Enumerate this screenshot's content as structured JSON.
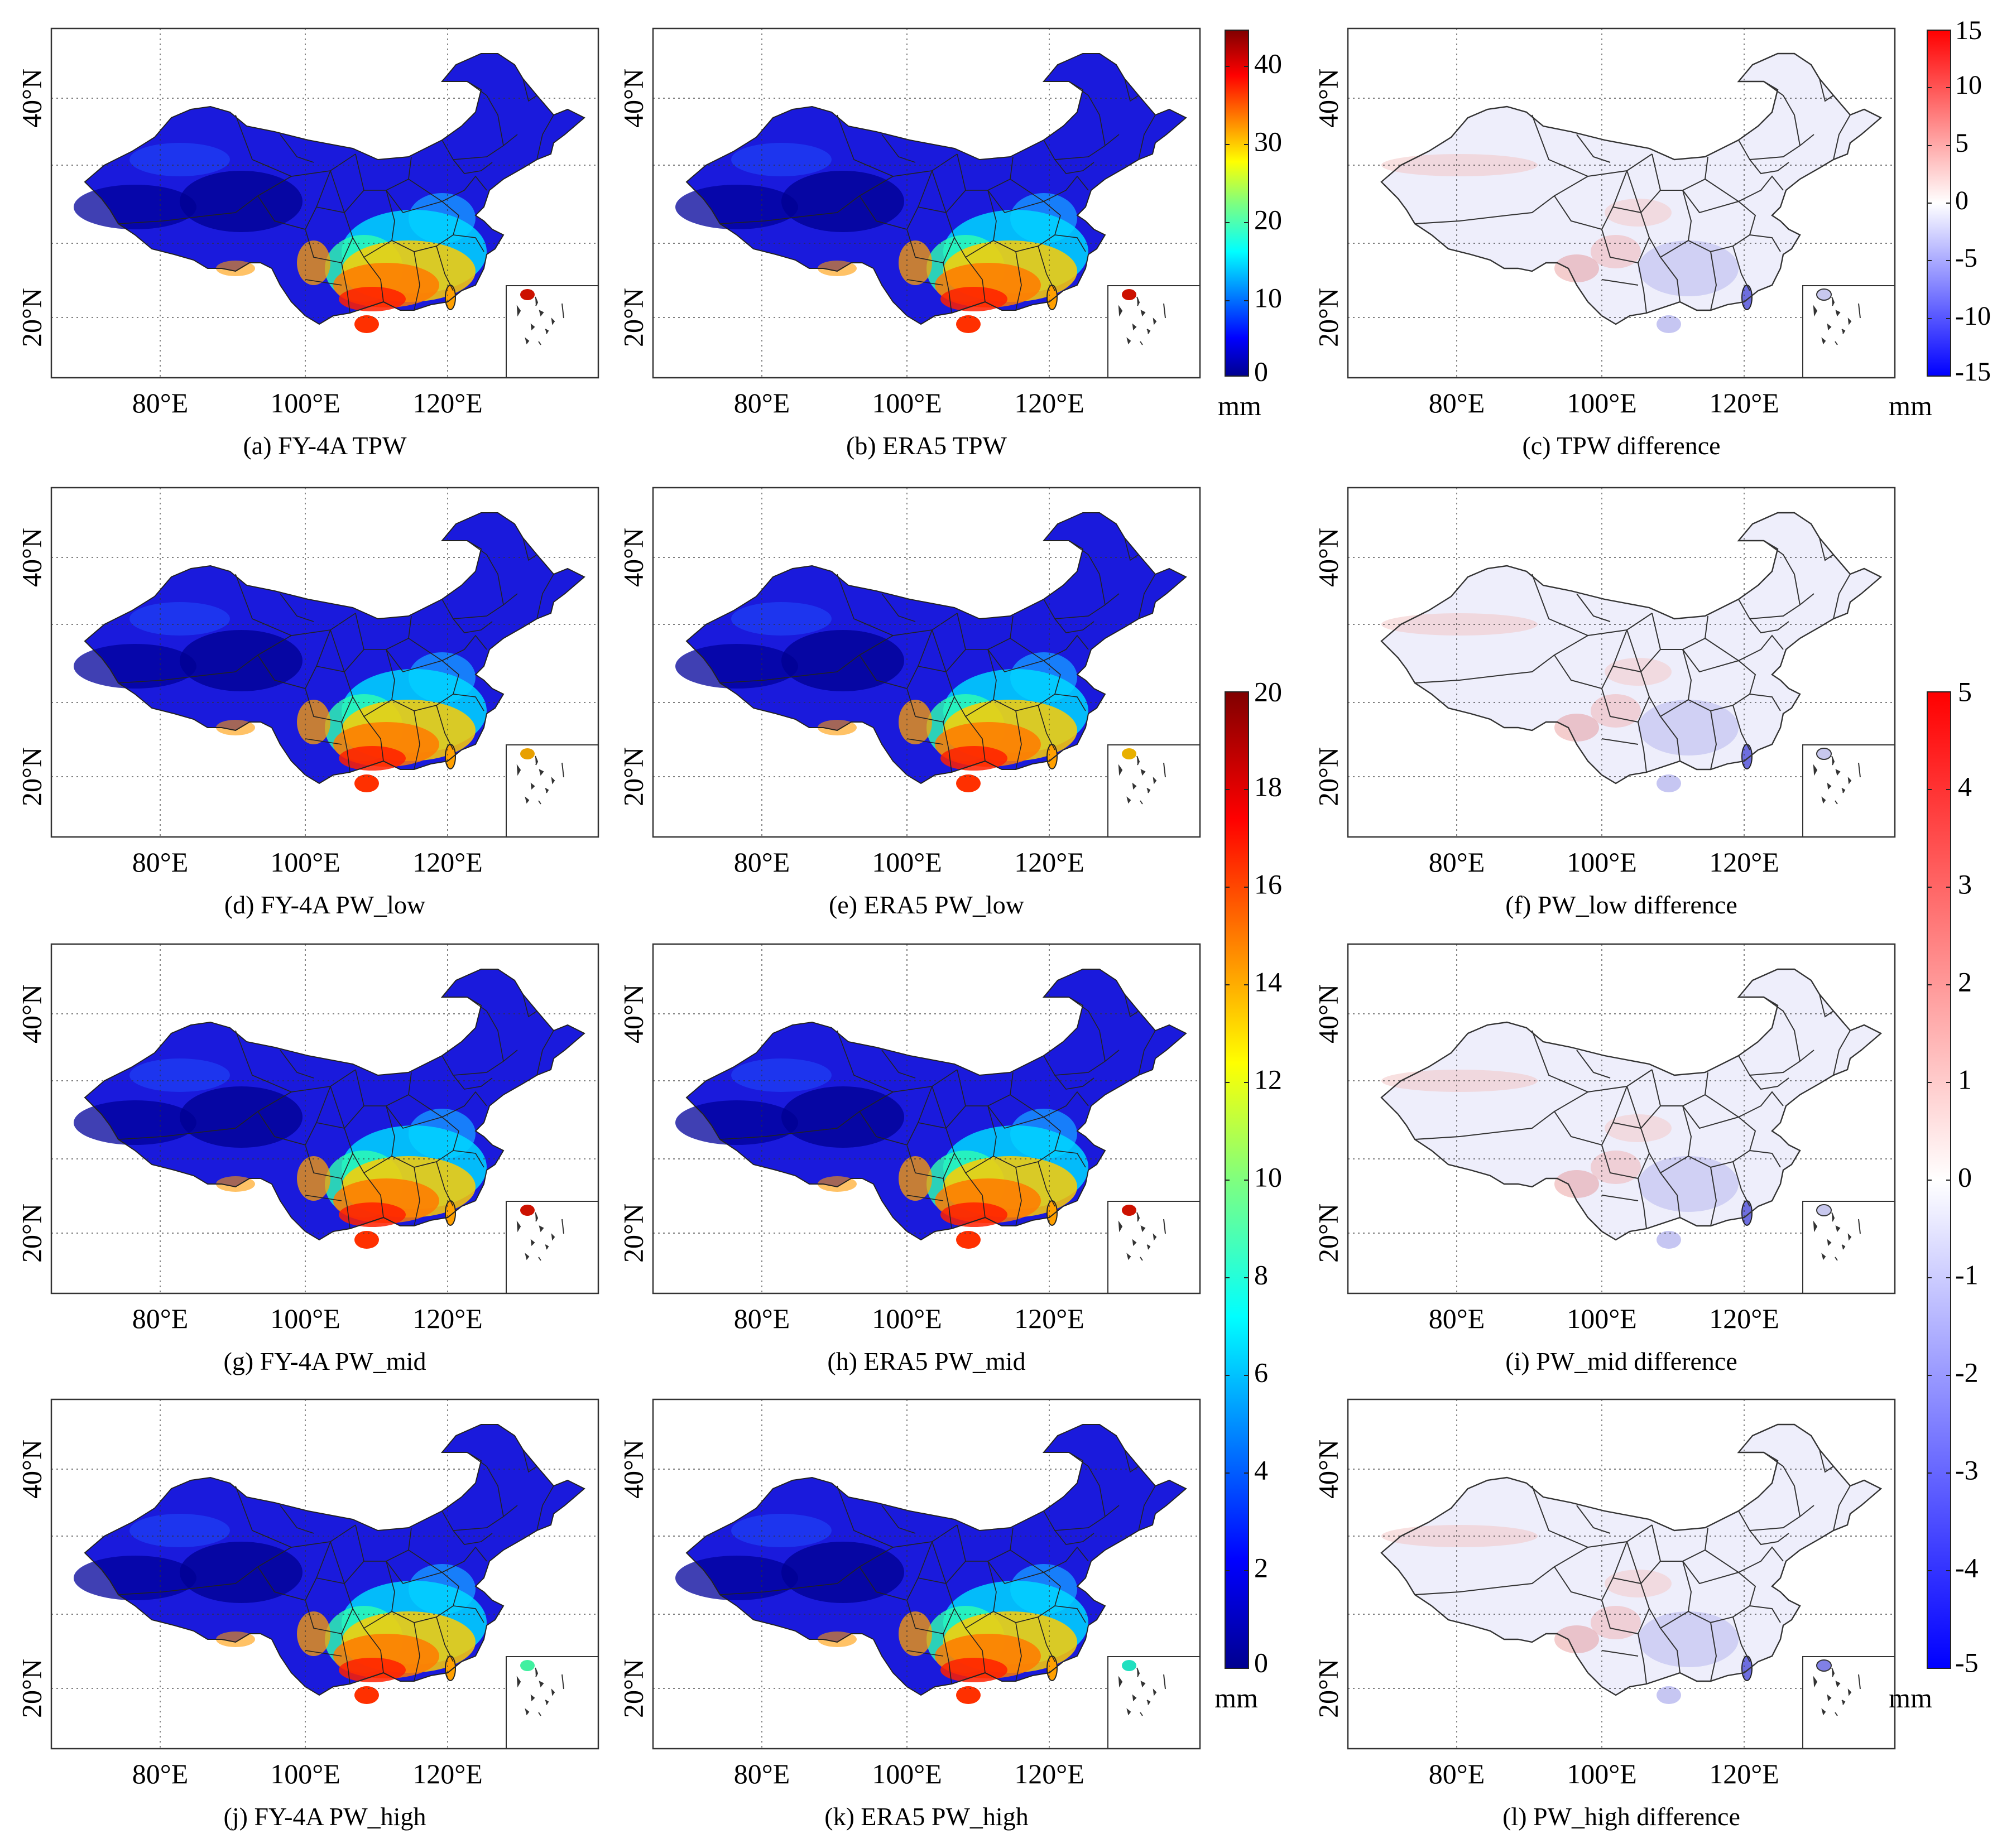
{
  "figure": {
    "axes": {
      "x_ticks": [
        "80°E",
        "100°E",
        "120°E"
      ],
      "y_ticks": [
        "20°N",
        "40°N"
      ]
    },
    "panels": [
      {
        "id": "a",
        "caption": "(a) FY-4A TPW",
        "scheme": "jet",
        "scale": "tpw"
      },
      {
        "id": "b",
        "caption": "(b) ERA5 TPW",
        "scheme": "jet",
        "scale": "tpw"
      },
      {
        "id": "c",
        "caption": "(c) TPW difference",
        "scheme": "diff",
        "scale": "tpw_diff"
      },
      {
        "id": "d",
        "caption": "(d) FY-4A PW_low",
        "scheme": "jet",
        "scale": "low"
      },
      {
        "id": "e",
        "caption": "(e) ERA5 PW_low",
        "scheme": "jet",
        "scale": "low"
      },
      {
        "id": "f",
        "caption": "(f) PW_low difference",
        "scheme": "diff",
        "scale": "diff"
      },
      {
        "id": "g",
        "caption": "(g) FY-4A PW_mid",
        "scheme": "jet",
        "scale": "mid"
      },
      {
        "id": "h",
        "caption": "(h) ERA5 PW_mid",
        "scheme": "jet",
        "scale": "mid"
      },
      {
        "id": "i",
        "caption": "(i) PW_mid difference",
        "scheme": "diff",
        "scale": "diff"
      },
      {
        "id": "j",
        "caption": "(j) FY-4A PW_high",
        "scheme": "jet",
        "scale": "high"
      },
      {
        "id": "k",
        "caption": "(k) ERA5 PW_high",
        "scheme": "jet",
        "scale": "high"
      },
      {
        "id": "l",
        "caption": "(l) PW_high difference",
        "scheme": "diff",
        "scale": "diff"
      }
    ],
    "colorbars": [
      {
        "id": "tpw",
        "ticks": [
          "40",
          "30",
          "20",
          "10",
          "0"
        ],
        "unit": "mm",
        "scheme": "jet"
      },
      {
        "id": "tpw_diff",
        "ticks": [
          "15",
          "10",
          "5",
          "0",
          "-5",
          "-10",
          "-15"
        ],
        "unit": "mm",
        "scheme": "diff"
      },
      {
        "id": "pw",
        "ticks": [
          "20",
          "18",
          "16",
          "14",
          "12",
          "10",
          "8",
          "6",
          "4",
          "2",
          "0"
        ],
        "unit": "mm",
        "scheme": "jet"
      },
      {
        "id": "pw_diff",
        "ticks": [
          "5",
          "4",
          "3",
          "2",
          "1",
          "0",
          "-1",
          "-2",
          "-3",
          "-4",
          "-5"
        ],
        "unit": "mm",
        "scheme": "diff"
      }
    ],
    "colors": {
      "jet_low": "#00008f",
      "jet_mid": "#00ffff",
      "jet_high": "#800000",
      "diff_neg": "#0000ff",
      "diff_zero": "#ffffff",
      "diff_pos": "#ff0000"
    }
  }
}
